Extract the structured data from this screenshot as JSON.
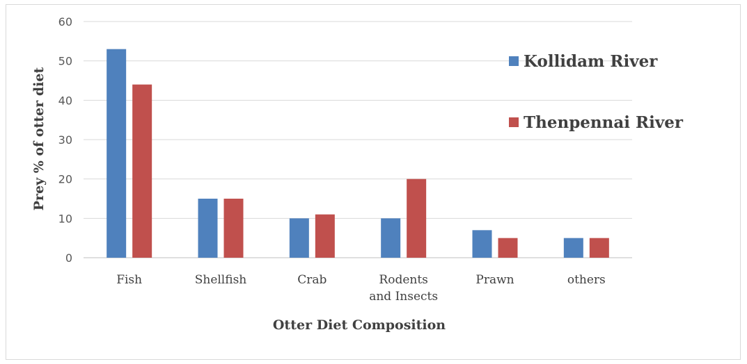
{
  "chart_data": {
    "type": "bar",
    "categories": [
      [
        "Fish"
      ],
      [
        "Shellfish"
      ],
      [
        "Crab"
      ],
      [
        "Rodents",
        "and Insects"
      ],
      [
        "Prawn"
      ],
      [
        "others"
      ]
    ],
    "series": [
      {
        "name": "Kollidam River",
        "color": "#4f81bd",
        "values": [
          53,
          15,
          10,
          10,
          7,
          5
        ]
      },
      {
        "name": "Thenpennai River",
        "color": "#c0504d",
        "values": [
          44,
          15,
          11,
          20,
          5,
          5
        ]
      }
    ],
    "xlabel": "Otter Diet Composition",
    "ylabel": "Prey % of otter diet",
    "ylim": [
      0,
      60
    ],
    "yticks": [
      0,
      10,
      20,
      30,
      40,
      50,
      60
    ],
    "grid": true,
    "legend_position": "right"
  }
}
